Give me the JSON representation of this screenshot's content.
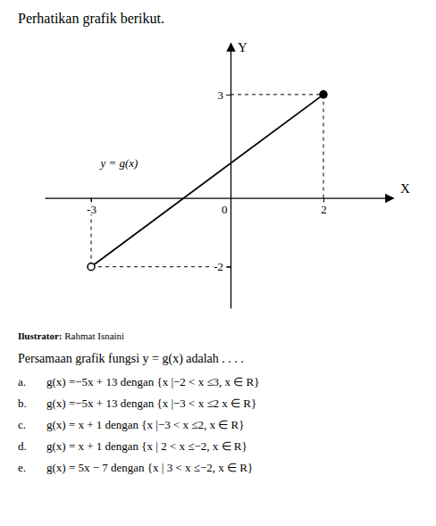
{
  "chart_data": {
    "type": "line",
    "title": "Perhatikan grafik berikut.",
    "x_label": "X",
    "y_label": "Y",
    "x": [
      -3,
      2
    ],
    "values": [
      -2,
      3
    ],
    "xlim": [
      -4.0,
      3.5
    ],
    "ylim": [
      -3.2,
      4.5
    ],
    "xticks": [
      -3,
      0,
      2
    ],
    "yticks": [
      -2,
      3
    ],
    "grid": false,
    "color": "#000000",
    "colors": [
      "#ffffff",
      "#000000"
    ],
    "marker": "circle",
    "annotations": [
      "y = g(x)",
      [
        "Ilustrator:",
        " Rahmat Isnaini"
      ],
      "Persamaan grafik fungsi y = g(x) adalah . . . .",
      [
        "a.",
        "g(x) =−5x + 13 dengan {x |−2 < x ≤3, x ∈ R}"
      ],
      [
        "b.",
        "g(x) =−5x + 13 dengan {x |−3 < x ≤2 x ∈ R}"
      ],
      [
        "c.",
        "g(x) = x + 1 dengan {x |−3 < x ≤2, x ∈ R}"
      ],
      [
        "d.",
        "g(x) = x + 1 dengan {x | 2 < x ≤−2, x ∈ R}"
      ],
      [
        "e.",
        "g(x) = 5x − 7 dengan {x | 3 < x ≤−2, x ∈ R}"
      ]
    ]
  }
}
